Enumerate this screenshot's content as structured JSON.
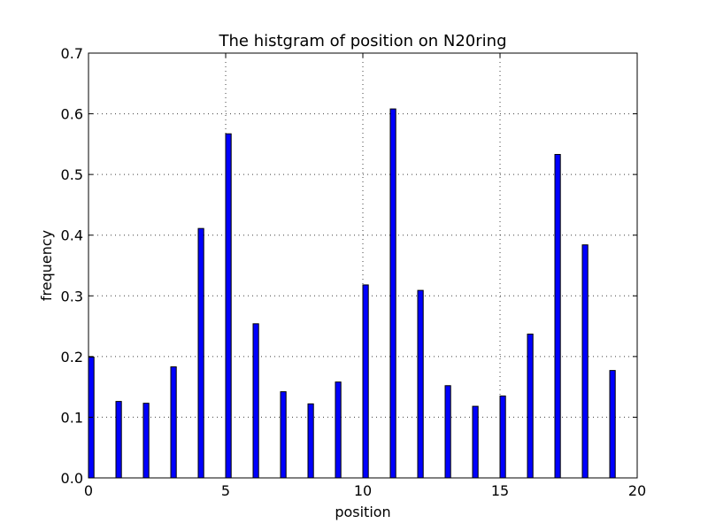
{
  "chart_data": {
    "type": "bar",
    "title": "The histgram of position on N20ring",
    "xlabel": "position",
    "ylabel": "frequency",
    "x": [
      0,
      1,
      2,
      3,
      4,
      5,
      6,
      7,
      8,
      9,
      10,
      11,
      12,
      13,
      14,
      15,
      16,
      17,
      18,
      19
    ],
    "values": [
      0.199,
      0.126,
      0.123,
      0.183,
      0.411,
      0.567,
      0.254,
      0.142,
      0.122,
      0.158,
      0.318,
      0.608,
      0.309,
      0.152,
      0.118,
      0.135,
      0.237,
      0.533,
      0.384,
      0.177
    ],
    "xlim": [
      0,
      20
    ],
    "ylim": [
      0,
      0.7
    ],
    "xticks": [
      "0",
      "5",
      "10",
      "15",
      "20"
    ],
    "yticks": [
      "0.0",
      "0.1",
      "0.2",
      "0.3",
      "0.4",
      "0.5",
      "0.6",
      "0.7"
    ],
    "grid": true,
    "bar_color": "#0000ff",
    "edge_color": "#000000"
  }
}
